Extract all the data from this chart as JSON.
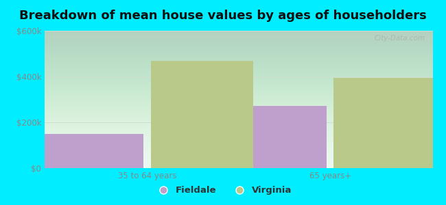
{
  "title": "Breakdown of mean house values by ages of householders",
  "categories": [
    "35 to 64 years",
    "65 years+"
  ],
  "series": {
    "Fieldale": [
      150000,
      272000
    ],
    "Virginia": [
      468000,
      395000
    ]
  },
  "bar_colors": {
    "Fieldale": "#bf9fcc",
    "Virginia": "#b8c98a"
  },
  "ylim": [
    0,
    600000
  ],
  "yticks": [
    0,
    200000,
    400000,
    600000
  ],
  "ytick_labels": [
    "$0",
    "$200k",
    "$400k",
    "$600k"
  ],
  "background_color": "#00eeff",
  "plot_bg_top": "#d8f0e0",
  "plot_bg_bottom": "#e8f8ee",
  "grid_color": "#d0ddd0",
  "title_fontsize": 13,
  "tick_fontsize": 8.5,
  "legend_fontsize": 9.5,
  "bar_width": 0.28,
  "watermark": "City-Data.com",
  "tick_color": "#888888",
  "title_color": "#111111"
}
